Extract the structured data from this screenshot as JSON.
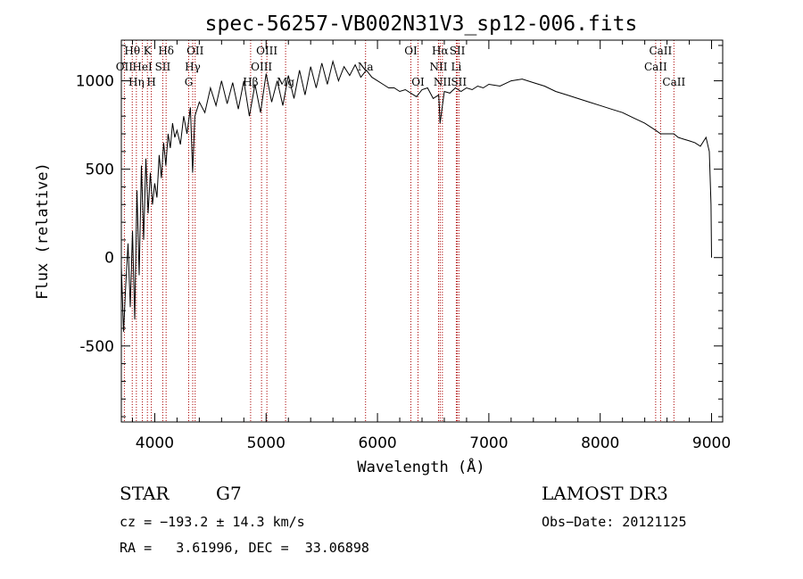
{
  "chart_data": {
    "type": "line",
    "title": "spec-56257-VB002N31V3_sp12-006.fits",
    "xlabel": "Wavelength (Å)",
    "ylabel": "Flux (relative)",
    "xlim": [
      3700,
      9100
    ],
    "ylim": [
      -930,
      1230
    ],
    "x_ticks": [
      4000,
      5000,
      6000,
      7000,
      8000,
      9000
    ],
    "x_tick_labels": [
      "4000",
      "5000",
      "6000",
      "7000",
      "8000",
      "9000"
    ],
    "y_ticks": [
      -500,
      0,
      500,
      1000
    ],
    "y_tick_labels": [
      "-500",
      "0",
      "500",
      "1000"
    ],
    "series": [
      {
        "name": "flux",
        "x": [
          3700,
          3720,
          3740,
          3760,
          3780,
          3800,
          3820,
          3840,
          3860,
          3880,
          3900,
          3920,
          3940,
          3960,
          3980,
          4000,
          4020,
          4040,
          4060,
          4080,
          4100,
          4120,
          4140,
          4160,
          4180,
          4200,
          4230,
          4260,
          4290,
          4320,
          4340,
          4360,
          4400,
          4450,
          4500,
          4550,
          4600,
          4650,
          4700,
          4750,
          4800,
          4850,
          4900,
          4950,
          5000,
          5050,
          5100,
          5150,
          5200,
          5250,
          5300,
          5350,
          5400,
          5450,
          5500,
          5550,
          5600,
          5650,
          5700,
          5750,
          5800,
          5850,
          5900,
          5950,
          6000,
          6050,
          6100,
          6150,
          6200,
          6250,
          6300,
          6350,
          6400,
          6450,
          6500,
          6550,
          6562,
          6600,
          6650,
          6700,
          6750,
          6800,
          6850,
          6900,
          6950,
          7000,
          7100,
          7200,
          7300,
          7400,
          7500,
          7600,
          7700,
          7800,
          7900,
          8000,
          8100,
          8200,
          8300,
          8400,
          8498,
          8542,
          8600,
          8662,
          8700,
          8750,
          8800,
          8850,
          8900,
          8950,
          8980,
          8995,
          9000
        ],
        "y": [
          -50,
          -420,
          -150,
          80,
          -280,
          150,
          -350,
          380,
          -100,
          520,
          100,
          560,
          250,
          480,
          300,
          420,
          340,
          580,
          450,
          650,
          520,
          700,
          620,
          760,
          680,
          720,
          640,
          800,
          700,
          850,
          480,
          800,
          880,
          820,
          960,
          860,
          1000,
          870,
          990,
          840,
          1000,
          800,
          980,
          820,
          1040,
          880,
          1000,
          860,
          1030,
          900,
          1060,
          920,
          1080,
          960,
          1100,
          980,
          1110,
          1000,
          1080,
          1030,
          1090,
          1020,
          1060,
          1020,
          1000,
          980,
          960,
          960,
          940,
          950,
          930,
          910,
          950,
          960,
          900,
          920,
          760,
          940,
          930,
          960,
          940,
          960,
          950,
          970,
          960,
          980,
          970,
          1000,
          1010,
          990,
          970,
          940,
          920,
          900,
          880,
          860,
          840,
          820,
          790,
          760,
          720,
          700,
          700,
          700,
          680,
          670,
          660,
          650,
          630,
          680,
          600,
          300,
          0
        ]
      }
    ],
    "line_markers": [
      {
        "label": "Hθ",
        "x": 3798
      },
      {
        "label": "K",
        "x": 3934
      },
      {
        "label": "Hδ",
        "x": 4102
      },
      {
        "label": "OII",
        "x": 4363
      },
      {
        "label": "OIII",
        "x": 5007
      },
      {
        "label": "OI",
        "x": 6300
      },
      {
        "label": "Hα",
        "x": 6563
      },
      {
        "label": "SII",
        "x": 6717
      },
      {
        "label": "CaII",
        "x": 8542
      },
      {
        "label": "OII",
        "x": 3727
      },
      {
        "label": "HeI",
        "x": 3889
      },
      {
        "label": "SII",
        "x": 4072
      },
      {
        "label": "Hγ",
        "x": 4341
      },
      {
        "label": "OIII",
        "x": 4959
      },
      {
        "label": "Na",
        "x": 5893
      },
      {
        "label": "NII",
        "x": 6548
      },
      {
        "label": "Li",
        "x": 6708
      },
      {
        "label": "CaII",
        "x": 8498
      },
      {
        "label": "Hη",
        "x": 3835
      },
      {
        "label": "H",
        "x": 3969
      },
      {
        "label": "G",
        "x": 4305
      },
      {
        "label": "Hβ",
        "x": 4861
      },
      {
        "label": "Mg",
        "x": 5175
      },
      {
        "label": "OI",
        "x": 6364
      },
      {
        "label": "NII",
        "x": 6583
      },
      {
        "label": "SII",
        "x": 6731
      },
      {
        "label": "CaII",
        "x": 8662
      }
    ]
  },
  "info": {
    "class_label": "STAR",
    "subclass": "G7",
    "survey": "LAMOST DR3",
    "cz": "cz = −193.2 ± 14.3 km/s",
    "obs_date": "Obs−Date: 20121125",
    "coords": "RA =   3.61996, DEC =  33.06898"
  },
  "colors": {
    "line": "#000000",
    "marker": "#aa0000",
    "axis": "#000000"
  }
}
